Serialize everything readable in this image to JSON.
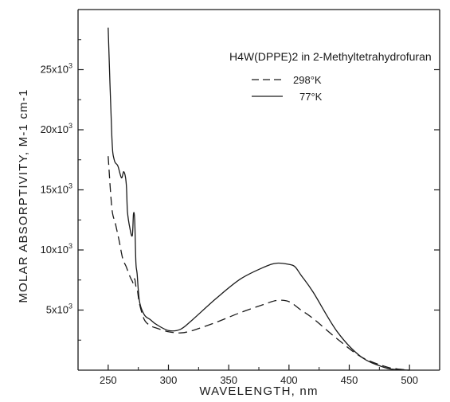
{
  "chart_data": {
    "type": "line",
    "legend_title": "H4W(DPPE)2 in 2-Methyltetrahydrofuran",
    "xlabel": "WAVELENGTH, nm",
    "ylabel": "MOLAR ABSORPTIVITY, M-1 cm-1",
    "xlim": [
      225,
      525
    ],
    "ylim": [
      0,
      30000
    ],
    "x_ticks": [
      250,
      300,
      350,
      400,
      450,
      500
    ],
    "x_tick_labels": [
      "250",
      "300",
      "350",
      "400",
      "450",
      "500"
    ],
    "y_ticks": [
      5000,
      10000,
      15000,
      20000,
      25000
    ],
    "y_tick_labels": [
      "5x10",
      "10x10",
      "15x10",
      "20x10",
      "25x10"
    ],
    "y_tick_exponent": "3",
    "grid": false,
    "legend_position": "top-right",
    "series": [
      {
        "name": "298°K",
        "style": "dashed",
        "x": [
          250,
          253,
          256,
          259,
          262,
          265,
          268,
          270,
          271,
          272,
          273,
          274,
          276,
          280,
          285,
          290,
          300,
          310,
          320,
          340,
          360,
          380,
          390,
          400,
          410,
          420,
          440,
          460,
          480,
          490,
          500
        ],
        "y": [
          17800,
          13500,
          12200,
          10800,
          9300,
          8600,
          7800,
          7400,
          7200,
          7600,
          7000,
          6800,
          5500,
          4200,
          3700,
          3500,
          3200,
          3100,
          3300,
          4000,
          4800,
          5500,
          5800,
          5700,
          5000,
          4300,
          2600,
          1100,
          300,
          100,
          0
        ]
      },
      {
        "name": "77°K",
        "style": "solid",
        "x": [
          250,
          253,
          255,
          258,
          261,
          263,
          265,
          266,
          268,
          270,
          271,
          272,
          273,
          274,
          276,
          280,
          285,
          290,
          300,
          310,
          320,
          340,
          360,
          380,
          390,
          400,
          405,
          410,
          420,
          440,
          460,
          480,
          490,
          500
        ],
        "y": [
          28500,
          19500,
          17500,
          17000,
          16000,
          16500,
          15500,
          13200,
          11800,
          11200,
          13000,
          12500,
          9000,
          8000,
          5700,
          4600,
          4200,
          3800,
          3300,
          3400,
          4200,
          6000,
          7600,
          8600,
          8900,
          8800,
          8600,
          7900,
          6500,
          3200,
          1100,
          200,
          50,
          0
        ]
      }
    ]
  }
}
